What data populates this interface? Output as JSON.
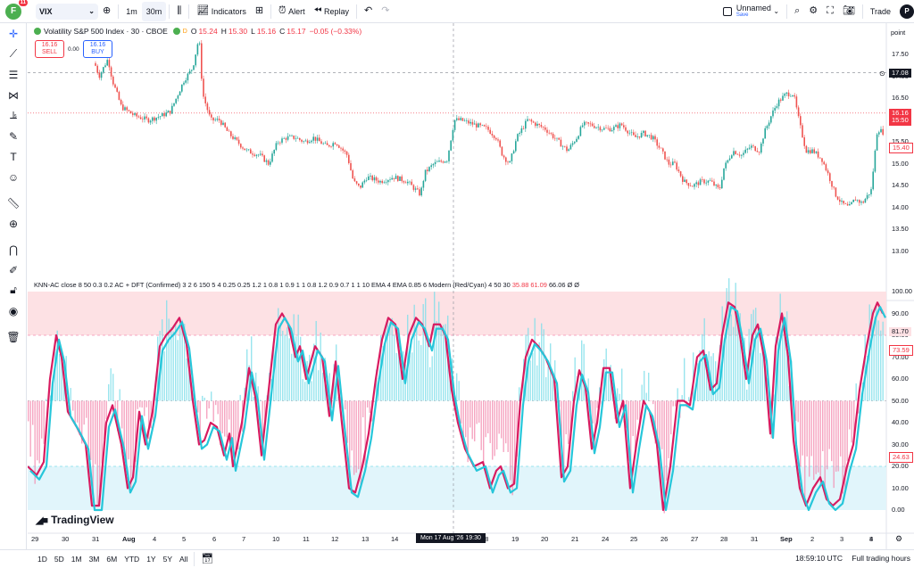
{
  "topbar": {
    "avatar_letter": "F",
    "avatar_badge": "11",
    "symbol": "VIX",
    "intervals": [
      "1m",
      "30m"
    ],
    "indicators": "Indicators",
    "alert": "Alert",
    "replay": "Replay",
    "layout_name": "Unnamed",
    "layout_status": "Save",
    "trade": "Trade",
    "profile_letter": "P"
  },
  "legend": {
    "title": "Volatility S&P 500 Index · 30 · CBOE",
    "flag": "D",
    "o_label": "O",
    "o": "15.24",
    "h_label": "H",
    "h": "15.30",
    "l_label": "L",
    "l": "15.16",
    "c_label": "C",
    "c": "15.17",
    "change": "−0.05 (−0.33%)"
  },
  "trade_buttons": {
    "sell_price": "16.16",
    "sell_label": "SELL",
    "buy_price": "16.16",
    "buy_label": "BUY",
    "spread": "0.00"
  },
  "indicator": {
    "legend": "KNN-AC close 8 50 0.3 0.2 AC + DFT (Confirmed) 3 2 6 150 5 4 0.25 0.25 1.2 1 0.8 1 0.9 1 1 0.8 1.2 0.9 0.7 1 1 10 EMA 4 EMA 0.85 6 Modern (Red/Cyan) 4 50 30",
    "v1": "35.88",
    "v2": "61.09",
    "v3": "66.06",
    "tail": "Ø Ø"
  },
  "price_axis": {
    "unit": "point",
    "ticks": [
      "17.50",
      "17.00",
      "16.50",
      "16.00",
      "15.50",
      "15.00",
      "14.50",
      "14.00",
      "13.50",
      "13.00"
    ],
    "crosshair_price": "17.08",
    "last_price": "16.16",
    "countdown": "15:50",
    "prev_price": "15.40"
  },
  "ind_axis": {
    "ticks": [
      "100.00",
      "90.00",
      "80.00",
      "70.00",
      "60.00",
      "50.00",
      "40.00",
      "30.00",
      "20.00",
      "10.00",
      "0.00"
    ],
    "label1": "81.70",
    "label2": "73.59",
    "label3": "24.63"
  },
  "time_axis": {
    "labels": [
      "29",
      "30",
      "31",
      "Aug",
      "4",
      "5",
      "6",
      "7",
      "10",
      "11",
      "12",
      "13",
      "14",
      "18",
      "19",
      "20",
      "21",
      "24",
      "25",
      "26",
      "27",
      "28",
      "31",
      "Sep",
      "2",
      "3",
      "4",
      "8"
    ],
    "crosshair_time": "Mon 17 Aug '26   19:30"
  },
  "bottombar": {
    "ranges": [
      "1D",
      "5D",
      "1M",
      "3M",
      "6M",
      "YTD",
      "1Y",
      "5Y",
      "All"
    ],
    "time": "18:59:10 UTC",
    "session": "Full trading hours"
  },
  "brand": "TradingView",
  "colors": {
    "up": "#26a69a",
    "down": "#ef5350",
    "red_line": "#d81b60",
    "cyan_line": "#26c6da",
    "ob_zone": "#fde1e4",
    "os_zone": "#e1f5fb"
  }
}
